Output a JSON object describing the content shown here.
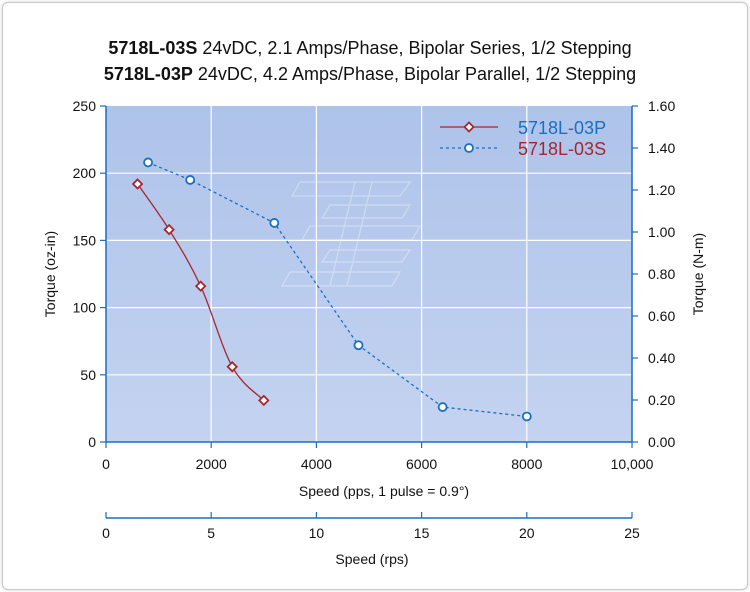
{
  "title": {
    "line1_model": "5718L-03S",
    "line1_desc": " 24vDC, 2.1 Amps/Phase, Bipolar Series, 1/2 Stepping",
    "line2_model": "5718L-03P",
    "line2_desc": " 24vDC, 4.2 Amps/Phase, Bipolar Parallel, 1/2 Stepping"
  },
  "chart_data": {
    "type": "line",
    "grid": true,
    "legend_placement": "top-right",
    "xlabel": "Speed (pps, 1 pulse = 0.9°)",
    "xlim": [
      0,
      10000
    ],
    "x_ticks": [
      "0",
      "2000",
      "4000",
      "6000",
      "8000",
      "10,000"
    ],
    "x_tick_values": [
      0,
      2000,
      4000,
      6000,
      8000,
      10000
    ],
    "ylabel": "Torque (oz-in)",
    "ylim": [
      0,
      250
    ],
    "y_ticks": [
      "0",
      "50",
      "100",
      "150",
      "200",
      "250"
    ],
    "y_tick_values": [
      0,
      50,
      100,
      150,
      200,
      250
    ],
    "y2label": "Torque (N-m)",
    "y2lim": [
      0,
      1.6
    ],
    "y2_ticks": [
      "0.00",
      "0.20",
      "0.40",
      "0.60",
      "0.80",
      "1.00",
      "1.20",
      "1.40",
      "1.60"
    ],
    "y2_tick_values": [
      0,
      0.2,
      0.4,
      0.6,
      0.8,
      1.0,
      1.2,
      1.4,
      1.6
    ],
    "secondary_x": {
      "label": "Speed (rps)",
      "lim": [
        0,
        25
      ],
      "ticks": [
        "0",
        "5",
        "10",
        "15",
        "20",
        "25"
      ],
      "tick_values": [
        0,
        5,
        10,
        15,
        20,
        25
      ]
    },
    "series": [
      {
        "name": "5718L-03P",
        "color": "#1a6fc0",
        "marker": "circle",
        "line_style": "dashed",
        "x": [
          800,
          1600,
          3200,
          4800,
          6400,
          8000
        ],
        "y": [
          208,
          195,
          163,
          72,
          26,
          19
        ]
      },
      {
        "name": "5718L-03S",
        "color": "#a5272d",
        "marker": "diamond",
        "line_style": "solid",
        "x": [
          600,
          1200,
          1800,
          2400,
          3000
        ],
        "y": [
          192,
          158,
          116,
          56,
          31
        ]
      }
    ]
  }
}
